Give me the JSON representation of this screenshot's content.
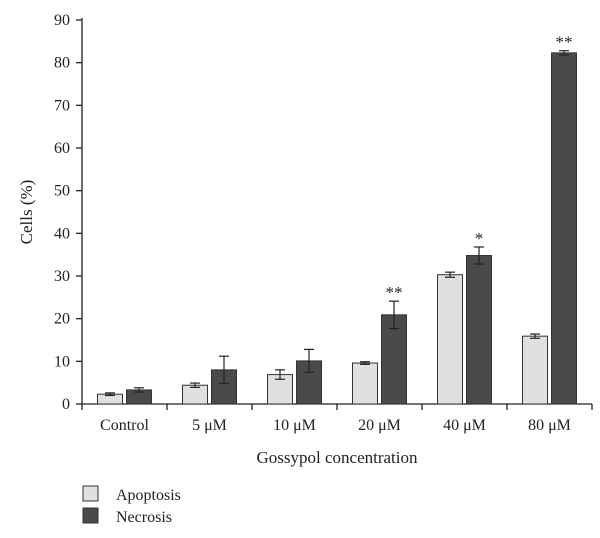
{
  "chart_data": {
    "type": "bar",
    "xlabel": "Gossypol concentration",
    "ylabel": "Cells (%)",
    "ylim": [
      0,
      90
    ],
    "yticks": [
      "0",
      "10",
      "20",
      "30",
      "40",
      "50",
      "60",
      "70",
      "80",
      "90"
    ],
    "categories": [
      "Control",
      "5 μM",
      "10 μM",
      "20 μM",
      "40 μM",
      "80 μM"
    ],
    "series": [
      {
        "name": "Apoptosis",
        "color": "#e0e0e0",
        "values": [
          2.3,
          4.4,
          6.9,
          9.6,
          30.3,
          15.9
        ],
        "errors": [
          0.3,
          0.5,
          1.1,
          0.3,
          0.6,
          0.5
        ],
        "significance": [
          "",
          "",
          "",
          "",
          "",
          ""
        ]
      },
      {
        "name": "Necrosis",
        "color": "#4a4a4a",
        "values": [
          3.3,
          8.0,
          10.1,
          20.9,
          34.8,
          82.3
        ],
        "errors": [
          0.5,
          3.2,
          2.7,
          3.2,
          2.0,
          0.5
        ],
        "significance": [
          "",
          "",
          "",
          "**",
          "*",
          "**"
        ]
      }
    ],
    "grid": false,
    "legend_position": "bottom-left"
  }
}
